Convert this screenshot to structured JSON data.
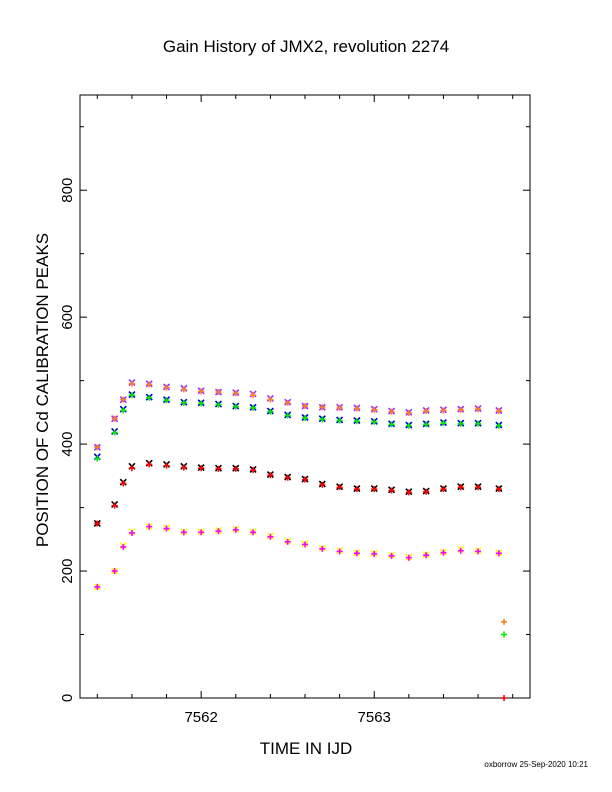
{
  "chart_data": {
    "type": "scatter",
    "title": "Gain History of JMX2, revolution 2274",
    "xlabel": "TIME IN IJD",
    "ylabel": "POSITION OF Cd CALIBRATION PEAKS",
    "xlim": [
      7561.3,
      7563.9
    ],
    "ylim": [
      0,
      950
    ],
    "xticks": [
      7562,
      7563
    ],
    "yticks": [
      0,
      200,
      400,
      600,
      800
    ],
    "footer": "oxborrow 25-Sep-2020 10:21",
    "grid": false,
    "series": [
      {
        "marker": "x",
        "color": "#9b30ff",
        "points": [
          [
            7561.4,
            395
          ],
          [
            7561.5,
            440
          ],
          [
            7561.55,
            470
          ],
          [
            7561.6,
            497
          ],
          [
            7561.7,
            495
          ],
          [
            7561.8,
            490
          ],
          [
            7561.9,
            488
          ],
          [
            7562.0,
            484
          ],
          [
            7562.1,
            482
          ],
          [
            7562.2,
            481
          ],
          [
            7562.3,
            479
          ],
          [
            7562.4,
            472
          ],
          [
            7562.5,
            466
          ],
          [
            7562.6,
            460
          ],
          [
            7562.7,
            458
          ],
          [
            7562.8,
            458
          ],
          [
            7562.9,
            457
          ],
          [
            7563.0,
            455
          ],
          [
            7563.1,
            452
          ],
          [
            7563.2,
            450
          ],
          [
            7563.3,
            453
          ],
          [
            7563.4,
            454
          ],
          [
            7563.5,
            455
          ],
          [
            7563.6,
            456
          ],
          [
            7563.72,
            453
          ]
        ]
      },
      {
        "marker": "x",
        "color": "#0000cd",
        "points": [
          [
            7561.4,
            380
          ],
          [
            7561.5,
            420
          ],
          [
            7561.55,
            455
          ],
          [
            7561.6,
            478
          ],
          [
            7561.7,
            474
          ],
          [
            7561.8,
            470
          ],
          [
            7561.9,
            466
          ],
          [
            7562.0,
            465
          ],
          [
            7562.1,
            463
          ],
          [
            7562.2,
            460
          ],
          [
            7562.3,
            458
          ],
          [
            7562.4,
            452
          ],
          [
            7562.5,
            446
          ],
          [
            7562.6,
            442
          ],
          [
            7562.7,
            440
          ],
          [
            7562.8,
            438
          ],
          [
            7562.9,
            437
          ],
          [
            7563.0,
            436
          ],
          [
            7563.1,
            432
          ],
          [
            7563.2,
            430
          ],
          [
            7563.3,
            432
          ],
          [
            7563.4,
            434
          ],
          [
            7563.5,
            433
          ],
          [
            7563.6,
            433
          ],
          [
            7563.72,
            430
          ]
        ]
      },
      {
        "marker": "+",
        "color": "#ff7f24",
        "points": [
          [
            7561.4,
            395
          ],
          [
            7561.5,
            440
          ],
          [
            7561.55,
            470
          ],
          [
            7561.6,
            495
          ],
          [
            7561.7,
            494
          ],
          [
            7561.8,
            489
          ],
          [
            7561.9,
            486
          ],
          [
            7562.0,
            483
          ],
          [
            7562.1,
            482
          ],
          [
            7562.2,
            480
          ],
          [
            7562.3,
            477
          ],
          [
            7562.4,
            470
          ],
          [
            7562.5,
            465
          ],
          [
            7562.6,
            460
          ],
          [
            7562.7,
            458
          ],
          [
            7562.8,
            457
          ],
          [
            7562.9,
            456
          ],
          [
            7563.0,
            454
          ],
          [
            7563.1,
            451
          ],
          [
            7563.2,
            449
          ],
          [
            7563.3,
            452
          ],
          [
            7563.4,
            453
          ],
          [
            7563.5,
            454
          ],
          [
            7563.6,
            455
          ],
          [
            7563.72,
            452
          ],
          [
            7563.75,
            120
          ]
        ]
      },
      {
        "marker": "+",
        "color": "#00ee00",
        "points": [
          [
            7561.4,
            377
          ],
          [
            7561.5,
            418
          ],
          [
            7561.55,
            453
          ],
          [
            7561.6,
            477
          ],
          [
            7561.7,
            473
          ],
          [
            7561.8,
            469
          ],
          [
            7561.9,
            465
          ],
          [
            7562.0,
            464
          ],
          [
            7562.1,
            462
          ],
          [
            7562.2,
            459
          ],
          [
            7562.3,
            457
          ],
          [
            7562.4,
            451
          ],
          [
            7562.5,
            445
          ],
          [
            7562.6,
            441
          ],
          [
            7562.7,
            439
          ],
          [
            7562.8,
            437
          ],
          [
            7562.9,
            436
          ],
          [
            7563.0,
            435
          ],
          [
            7563.1,
            431
          ],
          [
            7563.2,
            429
          ],
          [
            7563.3,
            431
          ],
          [
            7563.4,
            433
          ],
          [
            7563.5,
            432
          ],
          [
            7563.6,
            432
          ],
          [
            7563.72,
            429
          ],
          [
            7563.75,
            100
          ]
        ]
      },
      {
        "marker": "x",
        "color": "#000000",
        "points": [
          [
            7561.4,
            275
          ],
          [
            7561.5,
            305
          ],
          [
            7561.55,
            340
          ],
          [
            7561.6,
            365
          ],
          [
            7561.7,
            370
          ],
          [
            7561.8,
            368
          ],
          [
            7561.9,
            365
          ],
          [
            7562.0,
            363
          ],
          [
            7562.1,
            362
          ],
          [
            7562.2,
            362
          ],
          [
            7562.3,
            360
          ],
          [
            7562.4,
            352
          ],
          [
            7562.5,
            348
          ],
          [
            7562.6,
            345
          ],
          [
            7562.7,
            337
          ],
          [
            7562.8,
            333
          ],
          [
            7562.9,
            330
          ],
          [
            7563.0,
            330
          ],
          [
            7563.1,
            328
          ],
          [
            7563.2,
            325
          ],
          [
            7563.3,
            326
          ],
          [
            7563.4,
            330
          ],
          [
            7563.5,
            333
          ],
          [
            7563.6,
            333
          ],
          [
            7563.72,
            330
          ]
        ]
      },
      {
        "marker": "+",
        "color": "#ff0000",
        "points": [
          [
            7561.4,
            275
          ],
          [
            7561.5,
            303
          ],
          [
            7561.55,
            338
          ],
          [
            7561.6,
            362
          ],
          [
            7561.7,
            368
          ],
          [
            7561.8,
            366
          ],
          [
            7561.9,
            363
          ],
          [
            7562.0,
            362
          ],
          [
            7562.1,
            361
          ],
          [
            7562.2,
            361
          ],
          [
            7562.3,
            359
          ],
          [
            7562.4,
            351
          ],
          [
            7562.5,
            347
          ],
          [
            7562.6,
            344
          ],
          [
            7562.7,
            336
          ],
          [
            7562.8,
            332
          ],
          [
            7562.9,
            329
          ],
          [
            7563.0,
            329
          ],
          [
            7563.1,
            327
          ],
          [
            7563.2,
            324
          ],
          [
            7563.3,
            325
          ],
          [
            7563.4,
            329
          ],
          [
            7563.5,
            332
          ],
          [
            7563.6,
            332
          ],
          [
            7563.72,
            329
          ],
          [
            7563.75,
            0
          ]
        ]
      },
      {
        "marker": "x",
        "color": "#ffff00",
        "points": [
          [
            7561.4,
            175
          ],
          [
            7561.5,
            200
          ],
          [
            7561.55,
            240
          ],
          [
            7561.6,
            262
          ],
          [
            7561.7,
            270
          ],
          [
            7561.8,
            268
          ],
          [
            7561.9,
            262
          ],
          [
            7562.0,
            262
          ],
          [
            7562.1,
            264
          ],
          [
            7562.2,
            266
          ],
          [
            7562.3,
            262
          ],
          [
            7562.4,
            255
          ],
          [
            7562.5,
            247
          ],
          [
            7562.6,
            243
          ],
          [
            7562.7,
            236
          ],
          [
            7562.8,
            232
          ],
          [
            7562.9,
            229
          ],
          [
            7563.0,
            228
          ],
          [
            7563.1,
            225
          ],
          [
            7563.2,
            222
          ],
          [
            7563.3,
            226
          ],
          [
            7563.4,
            230
          ],
          [
            7563.5,
            234
          ],
          [
            7563.6,
            232
          ],
          [
            7563.72,
            229
          ]
        ]
      },
      {
        "marker": "+",
        "color": "#ff00ff",
        "points": [
          [
            7561.4,
            175
          ],
          [
            7561.5,
            200
          ],
          [
            7561.55,
            238
          ],
          [
            7561.6,
            260
          ],
          [
            7561.7,
            270
          ],
          [
            7561.8,
            267
          ],
          [
            7561.9,
            261
          ],
          [
            7562.0,
            261
          ],
          [
            7562.1,
            263
          ],
          [
            7562.2,
            265
          ],
          [
            7562.3,
            261
          ],
          [
            7562.4,
            254
          ],
          [
            7562.5,
            246
          ],
          [
            7562.6,
            242
          ],
          [
            7562.7,
            235
          ],
          [
            7562.8,
            231
          ],
          [
            7562.9,
            228
          ],
          [
            7563.0,
            227
          ],
          [
            7563.1,
            224
          ],
          [
            7563.2,
            221
          ],
          [
            7563.3,
            225
          ],
          [
            7563.4,
            229
          ],
          [
            7563.5,
            232
          ],
          [
            7563.6,
            231
          ],
          [
            7563.72,
            228
          ]
        ]
      }
    ]
  }
}
